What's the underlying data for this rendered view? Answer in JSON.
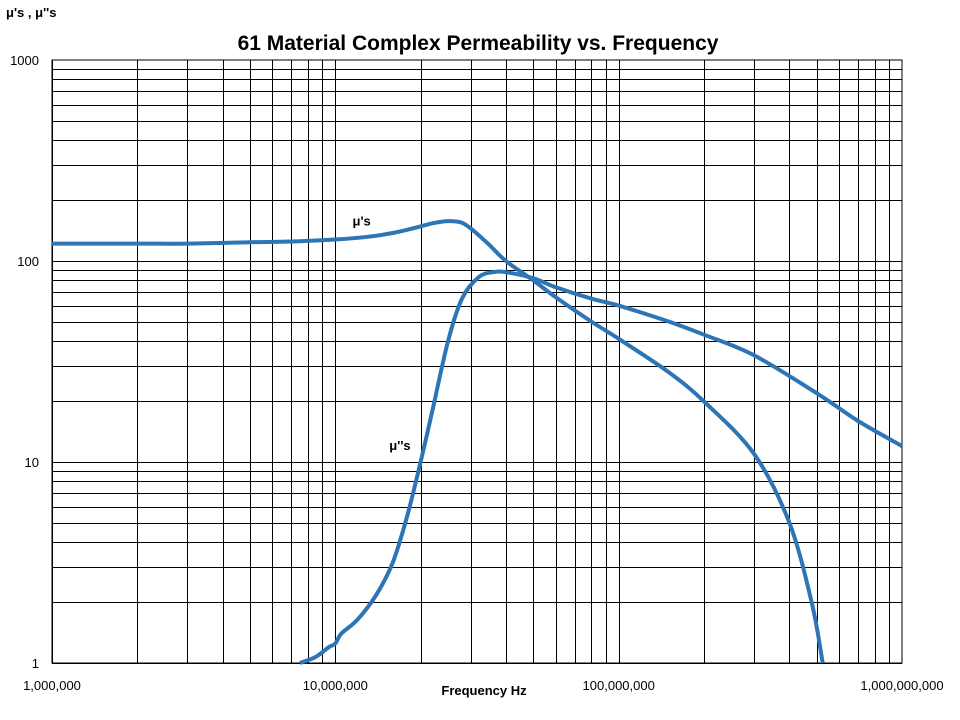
{
  "chart_data": {
    "type": "line",
    "title": "61 Material Complex Permeability vs. Frequency",
    "xlabel": "Frequency Hz",
    "ylabel": "μ's , μ''s",
    "x_scale": "log",
    "y_scale": "log",
    "xlim": [
      1000000,
      1000000000
    ],
    "ylim": [
      1,
      1000
    ],
    "grid": true,
    "line_color": "#2e75b6",
    "x_tick_labels": [
      {
        "value": 1000000,
        "label": "1,000,000"
      },
      {
        "value": 10000000,
        "label": "10,000,000"
      },
      {
        "value": 100000000,
        "label": "100,000,000"
      },
      {
        "value": 1000000000,
        "label": "1,000,000,000"
      }
    ],
    "y_tick_labels": [
      {
        "value": 1,
        "label": "1"
      },
      {
        "value": 10,
        "label": "10"
      },
      {
        "value": 100,
        "label": "100"
      },
      {
        "value": 1000,
        "label": "1000"
      }
    ],
    "series": [
      {
        "name": "μ's",
        "label_at": {
          "x": 11500000,
          "y": 150
        },
        "points": [
          [
            1000000,
            122
          ],
          [
            2000000,
            122
          ],
          [
            3000000,
            122
          ],
          [
            5000000,
            124
          ],
          [
            7000000,
            125
          ],
          [
            10000000,
            128
          ],
          [
            13000000,
            132
          ],
          [
            16000000,
            138
          ],
          [
            19000000,
            146
          ],
          [
            22000000,
            154
          ],
          [
            25000000,
            158
          ],
          [
            28000000,
            155
          ],
          [
            31000000,
            140
          ],
          [
            35000000,
            120
          ],
          [
            40000000,
            100
          ],
          [
            50000000,
            80
          ],
          [
            60000000,
            66
          ],
          [
            80000000,
            50
          ],
          [
            100000000,
            41
          ],
          [
            150000000,
            28
          ],
          [
            200000000,
            20
          ],
          [
            300000000,
            11
          ],
          [
            400000000,
            5
          ],
          [
            480000000,
            2
          ],
          [
            525000000,
            1
          ]
        ]
      },
      {
        "name": "μ''s",
        "label_at": {
          "x": 15500000,
          "y": 11.5
        },
        "points": [
          [
            7500000,
            1
          ],
          [
            8500000,
            1.07
          ],
          [
            9500000,
            1.2
          ],
          [
            10000000,
            1.25
          ],
          [
            10500000,
            1.4
          ],
          [
            12000000,
            1.65
          ],
          [
            14000000,
            2.2
          ],
          [
            16000000,
            3.2
          ],
          [
            18000000,
            5.5
          ],
          [
            20000000,
            10
          ],
          [
            22000000,
            18
          ],
          [
            25000000,
            40
          ],
          [
            28000000,
            65
          ],
          [
            32000000,
            83
          ],
          [
            36000000,
            88
          ],
          [
            40000000,
            88
          ],
          [
            50000000,
            82
          ],
          [
            60000000,
            74
          ],
          [
            80000000,
            65
          ],
          [
            100000000,
            60
          ],
          [
            150000000,
            50
          ],
          [
            200000000,
            43
          ],
          [
            300000000,
            34
          ],
          [
            500000000,
            22
          ],
          [
            700000000,
            16
          ],
          [
            1000000000,
            12
          ]
        ]
      }
    ]
  }
}
